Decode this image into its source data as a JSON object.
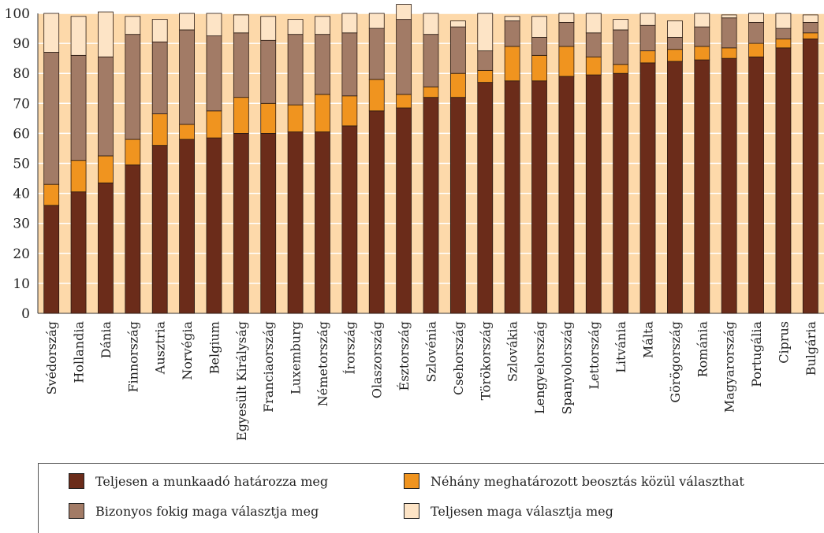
{
  "chart_data": {
    "type": "bar",
    "stacked": true,
    "title": "",
    "xlabel": "",
    "ylabel": "",
    "ylim": [
      0,
      100
    ],
    "yticks": [
      0,
      10,
      20,
      30,
      40,
      50,
      60,
      70,
      80,
      90,
      100
    ],
    "grid": true,
    "legend_position": "bottom",
    "background_color": "#fdd9aa",
    "categories": [
      "Svédország",
      "Hollandia",
      "Dánia",
      "Finnország",
      "Ausztria",
      "Norvégia",
      "Belgium",
      "Egyesült Királyság",
      "Franciaország",
      "Luxemburg",
      "Németország",
      "Írország",
      "Olaszország",
      "Észtország",
      "Szlovénia",
      "Csehország",
      "Törökország",
      "Szlovákia",
      "Lengyelország",
      "Spanyolország",
      "Lettország",
      "Litvánia",
      "Málta",
      "Görögország",
      "Románia",
      "Magyarország",
      "Portugália",
      "Ciprus",
      "Bulgária"
    ],
    "series": [
      {
        "name": "Teljesen a munkaadó határozza meg",
        "color": "#6b2c1a",
        "values": [
          36,
          40.5,
          43.5,
          49.5,
          56,
          58,
          58.5,
          60,
          60,
          60.5,
          60.5,
          62.5,
          67.5,
          68.5,
          72,
          72,
          77,
          77.5,
          77.5,
          79,
          79.5,
          80,
          83.5,
          84,
          84.5,
          85,
          85.5,
          88.5,
          91.5
        ]
      },
      {
        "name": "Néhány meghatározott beosztás közül választhat",
        "color": "#f0941f",
        "values": [
          7,
          10.5,
          9,
          8.5,
          10.5,
          5,
          9,
          12,
          10,
          9,
          12.5,
          10,
          10.5,
          4.5,
          3.5,
          8,
          4,
          11.5,
          8.5,
          10,
          6,
          3,
          4,
          4,
          4.5,
          3.5,
          4.5,
          3,
          2
        ]
      },
      {
        "name": "Bizonyos fokig maga választja meg",
        "color": "#a27b66",
        "values": [
          44,
          35,
          33,
          35,
          24,
          31.5,
          25,
          21.5,
          21,
          23.5,
          20,
          21,
          17,
          25,
          17.5,
          15.5,
          6.5,
          8.5,
          6,
          8,
          8,
          11.5,
          8.5,
          4,
          6.5,
          10,
          7,
          3.5,
          3.5
        ]
      },
      {
        "name": "Teljesen maga választja meg",
        "color": "#fde4c6",
        "values": [
          13,
          13,
          15,
          6,
          7.5,
          5.5,
          7.5,
          6,
          8,
          5,
          6,
          6.5,
          5,
          5,
          7,
          2,
          12.5,
          1.5,
          7,
          3,
          6.5,
          3.5,
          4,
          5.5,
          4.5,
          1,
          3,
          5,
          2.5
        ]
      }
    ]
  },
  "legend": {
    "entries": [
      {
        "label": "Teljesen a munkaadó határozza meg",
        "color": "#6b2c1a"
      },
      {
        "label": "Néhány meghatározott beosztás közül választhat",
        "color": "#f0941f"
      },
      {
        "label": "Bizonyos fokig maga választja meg",
        "color": "#a27b66"
      },
      {
        "label": "Teljesen maga választja meg",
        "color": "#fde4c6"
      }
    ]
  }
}
